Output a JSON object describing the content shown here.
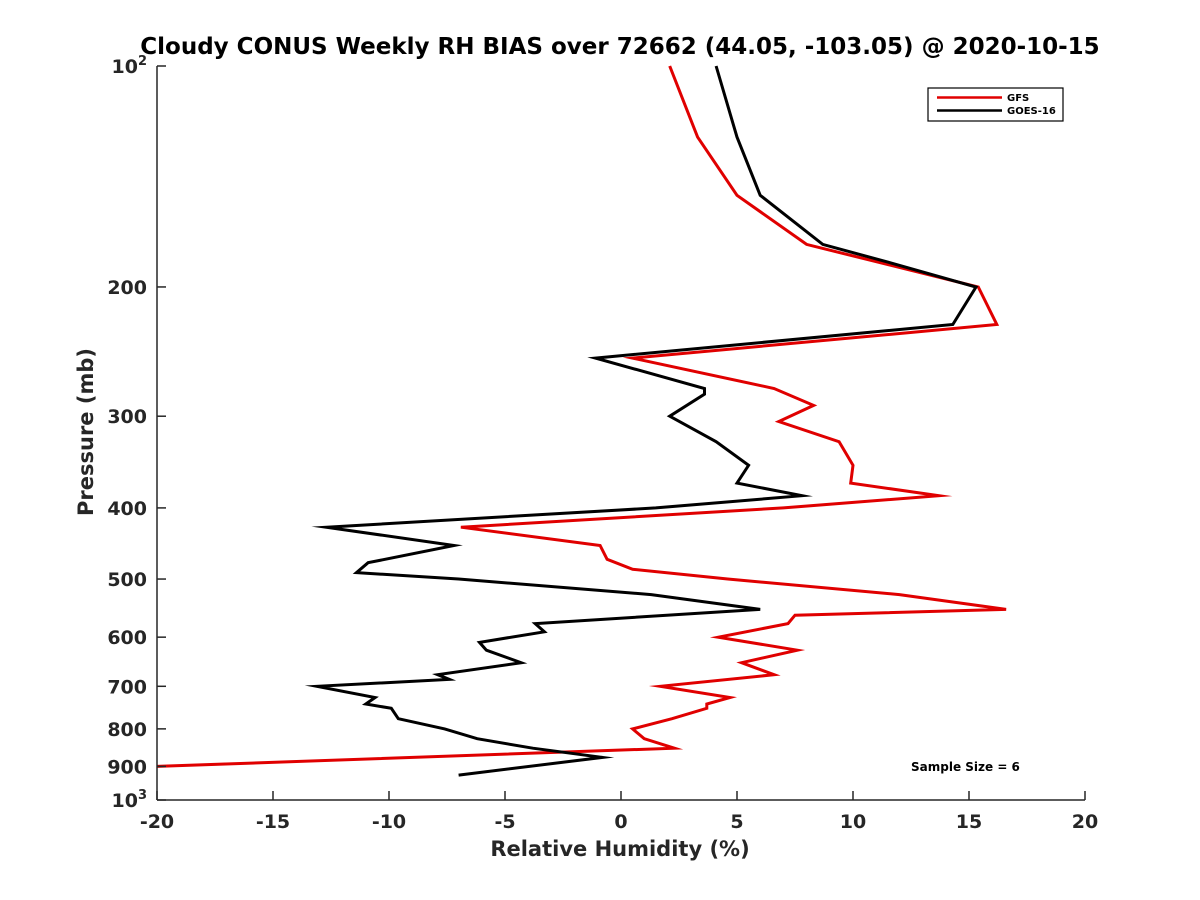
{
  "chart_data": {
    "type": "line",
    "title": "Cloudy CONUS Weekly RH BIAS over 72662 (44.05, -103.05) @ 2020-10-15",
    "xlabel": "Relative Humidity (%)",
    "ylabel": "Pressure (mb)",
    "xlim": [
      -20,
      20
    ],
    "ylim": [
      100,
      1000
    ],
    "y_scale": "log",
    "y_reversed": true,
    "x_ticks": [
      "-20",
      "-15",
      "-10",
      "-5",
      "0",
      "5",
      "10",
      "15",
      "20"
    ],
    "y_ticks": [
      {
        "value": 100,
        "base": "10",
        "exp": "2",
        "label": ""
      },
      {
        "value": 200,
        "label": "200"
      },
      {
        "value": 300,
        "label": "300"
      },
      {
        "value": 400,
        "label": "400"
      },
      {
        "value": 500,
        "label": "500"
      },
      {
        "value": 600,
        "label": "600"
      },
      {
        "value": 700,
        "label": "700"
      },
      {
        "value": 800,
        "label": "800"
      },
      {
        "value": 900,
        "label": "900"
      },
      {
        "value": 1000,
        "base": "10",
        "exp": "3",
        "label": ""
      }
    ],
    "grid": false,
    "legend_position": "top-right",
    "annotation": "Sample Size = 6",
    "series": [
      {
        "name": "GFS",
        "color": "#e00000",
        "points": [
          {
            "x": 2.1,
            "y": 100
          },
          {
            "x": 3.3,
            "y": 125
          },
          {
            "x": 5.0,
            "y": 150
          },
          {
            "x": 8.0,
            "y": 175
          },
          {
            "x": 15.4,
            "y": 200
          },
          {
            "x": 16.2,
            "y": 225
          },
          {
            "x": 0.5,
            "y": 250
          },
          {
            "x": 6.6,
            "y": 275
          },
          {
            "x": 8.3,
            "y": 290
          },
          {
            "x": 6.8,
            "y": 305
          },
          {
            "x": 9.4,
            "y": 325
          },
          {
            "x": 10.0,
            "y": 350
          },
          {
            "x": 9.9,
            "y": 370
          },
          {
            "x": 13.7,
            "y": 385
          },
          {
            "x": 7.0,
            "y": 400
          },
          {
            "x": -6.9,
            "y": 425
          },
          {
            "x": -0.9,
            "y": 450
          },
          {
            "x": -0.6,
            "y": 470
          },
          {
            "x": 0.5,
            "y": 485
          },
          {
            "x": 4.6,
            "y": 500
          },
          {
            "x": 12.0,
            "y": 525
          },
          {
            "x": 16.6,
            "y": 550
          },
          {
            "x": 7.5,
            "y": 560
          },
          {
            "x": 7.2,
            "y": 575
          },
          {
            "x": 4.2,
            "y": 600
          },
          {
            "x": 7.6,
            "y": 625
          },
          {
            "x": 5.2,
            "y": 650
          },
          {
            "x": 6.6,
            "y": 675
          },
          {
            "x": 1.7,
            "y": 700
          },
          {
            "x": 4.7,
            "y": 725
          },
          {
            "x": 3.7,
            "y": 740
          },
          {
            "x": 3.7,
            "y": 750
          },
          {
            "x": 2.2,
            "y": 775
          },
          {
            "x": 0.5,
            "y": 800
          },
          {
            "x": 1.0,
            "y": 825
          },
          {
            "x": 2.3,
            "y": 850
          },
          {
            "x": -20.0,
            "y": 900
          }
        ]
      },
      {
        "name": "GOES-16",
        "color": "#000000",
        "points": [
          {
            "x": 4.1,
            "y": 100
          },
          {
            "x": 5.0,
            "y": 125
          },
          {
            "x": 6.0,
            "y": 150
          },
          {
            "x": 8.7,
            "y": 175
          },
          {
            "x": 11.5,
            "y": 185
          },
          {
            "x": 15.3,
            "y": 200
          },
          {
            "x": 14.3,
            "y": 225
          },
          {
            "x": -1.1,
            "y": 250
          },
          {
            "x": 3.6,
            "y": 275
          },
          {
            "x": 3.6,
            "y": 280
          },
          {
            "x": 2.1,
            "y": 300
          },
          {
            "x": 4.1,
            "y": 325
          },
          {
            "x": 5.5,
            "y": 350
          },
          {
            "x": 5.0,
            "y": 370
          },
          {
            "x": 7.8,
            "y": 385
          },
          {
            "x": 1.5,
            "y": 400
          },
          {
            "x": -12.7,
            "y": 425
          },
          {
            "x": -7.2,
            "y": 450
          },
          {
            "x": -10.9,
            "y": 475
          },
          {
            "x": -11.4,
            "y": 490
          },
          {
            "x": -7.0,
            "y": 500
          },
          {
            "x": 1.3,
            "y": 525
          },
          {
            "x": 6.0,
            "y": 550
          },
          {
            "x": -3.7,
            "y": 575
          },
          {
            "x": -3.3,
            "y": 590
          },
          {
            "x": -6.1,
            "y": 610
          },
          {
            "x": -5.8,
            "y": 625
          },
          {
            "x": -4.3,
            "y": 650
          },
          {
            "x": -7.9,
            "y": 675
          },
          {
            "x": -7.4,
            "y": 685
          },
          {
            "x": -13.1,
            "y": 700
          },
          {
            "x": -10.6,
            "y": 725
          },
          {
            "x": -11.0,
            "y": 740
          },
          {
            "x": -9.9,
            "y": 750
          },
          {
            "x": -9.6,
            "y": 775
          },
          {
            "x": -7.6,
            "y": 800
          },
          {
            "x": -6.2,
            "y": 825
          },
          {
            "x": -3.8,
            "y": 850
          },
          {
            "x": -0.8,
            "y": 875
          },
          {
            "x": -7.0,
            "y": 925
          }
        ]
      }
    ]
  }
}
